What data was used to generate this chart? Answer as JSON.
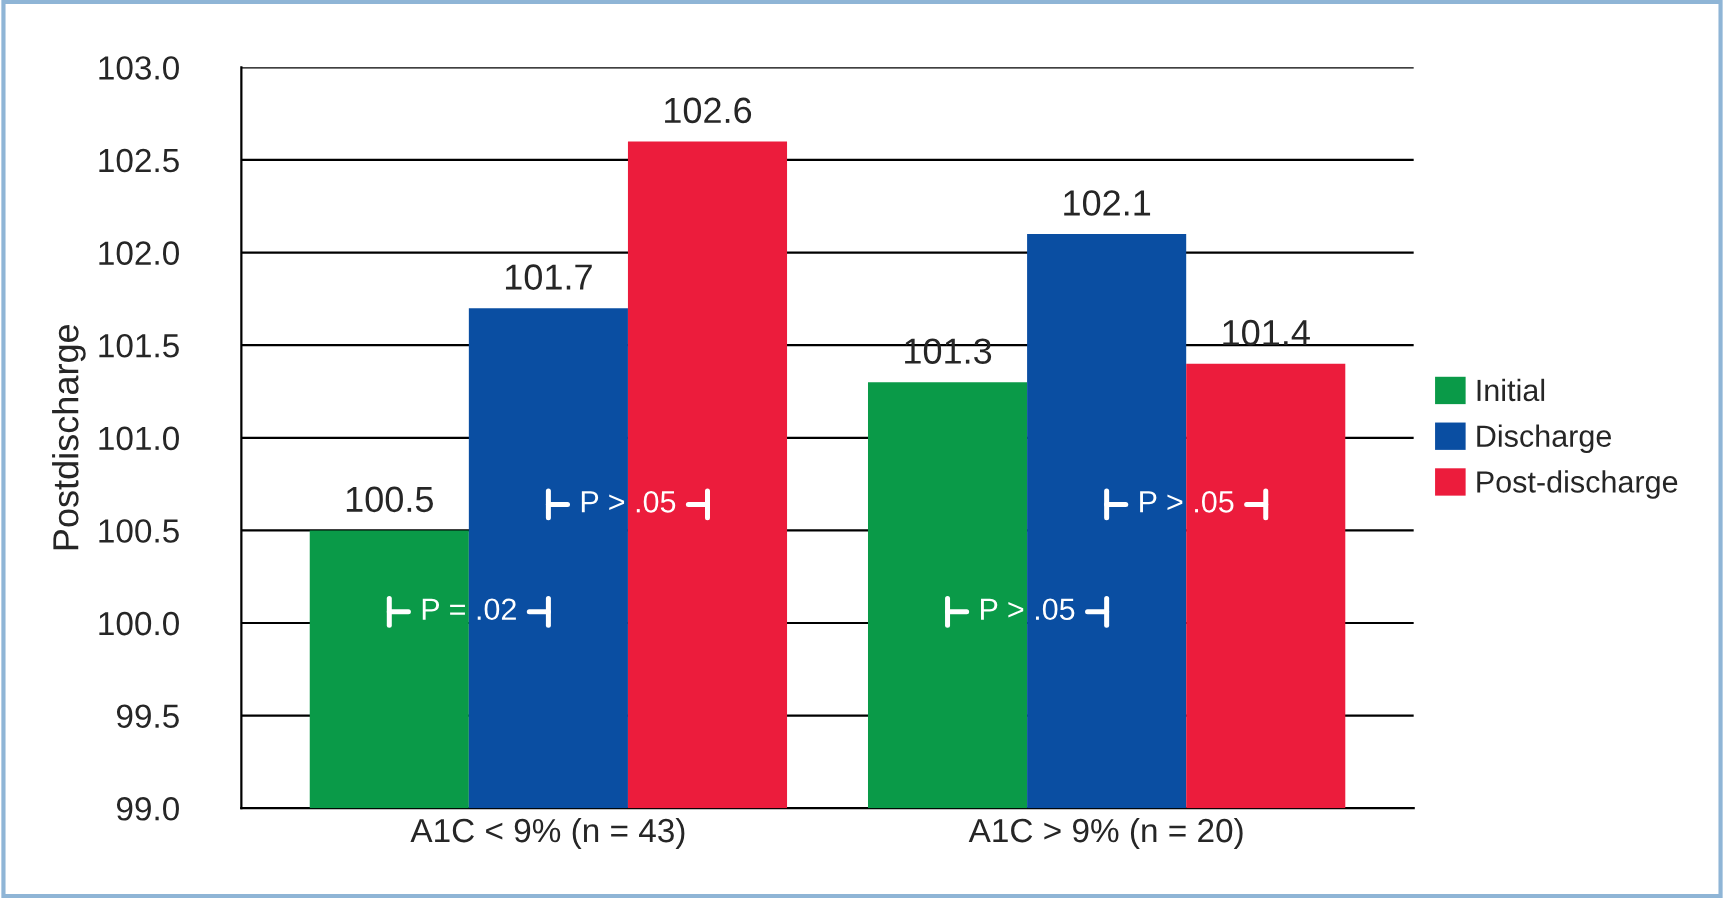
{
  "chart_data": {
    "type": "bar",
    "ylabel": "Postdischarge",
    "categories": [
      "A1C < 9% (n = 43)",
      "A1C > 9% (n = 20)"
    ],
    "series": [
      {
        "name": "Initial",
        "color": "#0a9a48",
        "values": [
          100.5,
          101.3
        ]
      },
      {
        "name": "Discharge",
        "color": "#0a4ea2",
        "values": [
          101.7,
          102.1
        ]
      },
      {
        "name": "Post-discharge",
        "color": "#ec1c3c",
        "values": [
          102.6,
          101.4
        ]
      }
    ],
    "ylim": [
      99.0,
      103.0
    ],
    "yticks": [
      {
        "value": 99,
        "label": "99.0"
      },
      99.5,
      {
        "value": 100,
        "label": "100.0"
      },
      100.5,
      {
        "value": 101,
        "label": "101.0"
      },
      101.5,
      {
        "value": 102,
        "label": "102.0"
      },
      102.5,
      {
        "value": 103,
        "label": "103.0"
      }
    ],
    "grid": "y",
    "legend": "right",
    "data_labels": true,
    "annotations": [
      "P = .02",
      "P > .05",
      "P > .05",
      "P > .05"
    ]
  }
}
